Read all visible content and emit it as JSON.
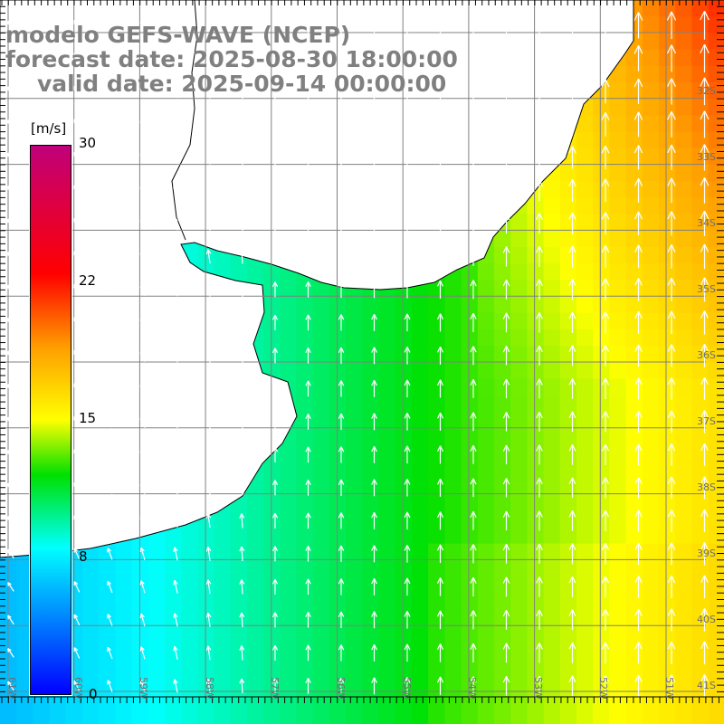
{
  "header": {
    "model": "modelo GEFS-WAVE (NCEP)",
    "forecast": "forecast date: 2025-08-30 18:00:00",
    "valid": "valid date: 2025-09-14 00:00:00"
  },
  "colorbar": {
    "unit": "[m/s]",
    "labels": [
      "30",
      "22",
      "15",
      "8",
      "0"
    ],
    "colors": [
      "#0000ff",
      "#00ffff",
      "#00e000",
      "#ffff00",
      "#ffa000",
      "#ff0000",
      "#c0007a"
    ]
  },
  "lat_labels": [
    "32S",
    "33S",
    "34S",
    "35S",
    "36S",
    "37S",
    "38S",
    "39S",
    "40S",
    "41S"
  ],
  "lon_labels": [
    "61W",
    "60W",
    "59W",
    "58W",
    "57W",
    "56W",
    "55W",
    "54W",
    "53W",
    "52W",
    "51W"
  ],
  "colors": {
    "land": "#ffffff",
    "grid": "#808080",
    "coast": "#000000",
    "arrow": "#ffffff"
  }
}
